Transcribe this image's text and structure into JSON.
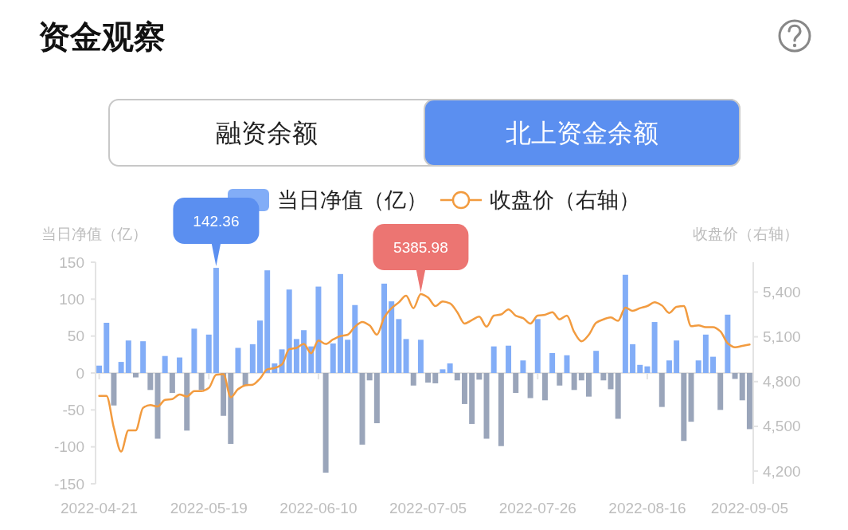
{
  "chart_data": {
    "type": "bar",
    "title": "资金观察",
    "annotations": [
      "融资余额",
      "北上资金余额"
    ],
    "ylabel": "当日净值（亿）",
    "y2label": "收盘价（右轴）",
    "legend": "top",
    "categories": [
      "2022-04-21",
      null,
      null,
      null,
      null,
      null,
      null,
      null,
      null,
      null,
      null,
      null,
      null,
      null,
      null,
      "2022-05-19",
      null,
      null,
      null,
      null,
      null,
      null,
      null,
      null,
      null,
      null,
      null,
      null,
      null,
      null,
      "2022-06-10",
      null,
      null,
      null,
      null,
      null,
      null,
      null,
      null,
      null,
      null,
      null,
      null,
      null,
      null,
      "2022-07-05",
      null,
      null,
      null,
      null,
      null,
      null,
      null,
      null,
      null,
      null,
      null,
      null,
      null,
      null,
      "2022-07-26",
      null,
      null,
      null,
      null,
      null,
      null,
      null,
      null,
      null,
      null,
      null,
      null,
      null,
      null,
      "2022-08-16",
      null,
      null,
      null,
      null,
      null,
      null,
      null,
      null,
      null,
      null,
      null,
      null,
      null,
      "2022-09-05"
    ],
    "series": [
      {
        "name": "当日净值（亿）",
        "color": "#82adf7",
        "values": [
          10,
          68,
          -44,
          15,
          44,
          -6,
          43,
          -23,
          -89,
          23,
          -27,
          21,
          -78,
          60,
          -23,
          52,
          142.36,
          -58,
          -96,
          34,
          -17,
          39,
          71,
          139,
          13,
          32,
          113,
          46,
          58,
          36,
          117,
          -135,
          40,
          134,
          45,
          92,
          -97,
          -10,
          -68,
          121,
          97,
          73,
          46,
          -17,
          45,
          -13,
          -14,
          5,
          13,
          -10,
          -42,
          -69,
          -9,
          -89,
          36,
          -99,
          37,
          -27,
          17,
          -34,
          73,
          -37,
          27,
          -17,
          24,
          -23,
          -10,
          -32,
          30,
          -10,
          -22,
          -62,
          133,
          39,
          11,
          9,
          69,
          -46,
          17,
          44,
          -92,
          -66,
          17,
          52,
          22,
          -50,
          79,
          -8,
          -37,
          -76
        ],
        "colors": [
          "#82adf7",
          "#82adf7",
          "#9aa5ba",
          "#82adf7",
          "#82adf7",
          "#9aa5ba",
          "#82adf7",
          "#9aa5ba",
          "#9aa5ba",
          "#82adf7",
          "#9aa5ba",
          "#82adf7",
          "#9aa5ba",
          "#82adf7",
          "#9aa5ba",
          "#82adf7",
          "#82adf7",
          "#9aa5ba",
          "#9aa5ba",
          "#82adf7",
          "#9aa5ba",
          "#82adf7",
          "#82adf7",
          "#82adf7",
          "#82adf7",
          "#82adf7",
          "#82adf7",
          "#82adf7",
          "#82adf7",
          "#82adf7",
          "#82adf7",
          "#9aa5ba",
          "#82adf7",
          "#82adf7",
          "#82adf7",
          "#82adf7",
          "#9aa5ba",
          "#9aa5ba",
          "#9aa5ba",
          "#82adf7",
          "#82adf7",
          "#82adf7",
          "#82adf7",
          "#9aa5ba",
          "#82adf7",
          "#9aa5ba",
          "#9aa5ba",
          "#82adf7",
          "#82adf7",
          "#9aa5ba",
          "#9aa5ba",
          "#9aa5ba",
          "#9aa5ba",
          "#9aa5ba",
          "#82adf7",
          "#9aa5ba",
          "#82adf7",
          "#9aa5ba",
          "#82adf7",
          "#9aa5ba",
          "#82adf7",
          "#9aa5ba",
          "#82adf7",
          "#9aa5ba",
          "#82adf7",
          "#9aa5ba",
          "#9aa5ba",
          "#9aa5ba",
          "#82adf7",
          "#9aa5ba",
          "#9aa5ba",
          "#9aa5ba",
          "#82adf7",
          "#82adf7",
          "#82adf7",
          "#82adf7",
          "#82adf7",
          "#9aa5ba",
          "#82adf7",
          "#82adf7",
          "#9aa5ba",
          "#9aa5ba",
          "#82adf7",
          "#82adf7",
          "#82adf7",
          "#9aa5ba",
          "#82adf7",
          "#9aa5ba",
          "#9aa5ba",
          "#9aa5ba"
        ],
        "value_labels": [
          null,
          null,
          null,
          null,
          null,
          null,
          null,
          null,
          null,
          null,
          null,
          null,
          null,
          null,
          null,
          null,
          "142.36",
          null,
          null,
          null,
          null,
          null,
          null,
          null,
          null,
          null,
          null,
          null,
          null,
          null,
          null,
          null,
          null,
          null,
          null,
          null,
          null,
          null,
          null,
          null,
          null,
          null,
          null,
          null,
          null,
          null,
          null,
          null,
          null,
          null,
          null,
          null,
          null,
          null,
          null,
          null,
          null,
          null,
          null,
          null,
          null,
          null,
          null,
          null,
          null,
          null,
          null,
          null,
          null,
          null,
          null,
          null,
          null,
          null,
          null,
          null,
          null,
          null,
          null,
          null,
          null,
          null,
          null,
          null,
          null,
          null,
          null,
          null,
          null,
          null
        ]
      },
      {
        "name": "收盘价（右轴）",
        "type": "line",
        "axis": "y2",
        "color": "#f29b3f",
        "values": [
          4704,
          4704,
          4491,
          4331,
          4473,
          4473,
          4624,
          4642,
          4633,
          4677,
          4683,
          4713,
          4700,
          4736,
          4736,
          4757,
          4846,
          4850,
          4695,
          4749,
          4775,
          4779,
          4820,
          4882,
          4891,
          4915,
          5017,
          5026,
          5052,
          4990,
          5075,
          5052,
          5082,
          5105,
          5114,
          5168,
          5200,
          5177,
          5114,
          5230,
          5292,
          5331,
          5375,
          5292,
          5385.98,
          5363,
          5306,
          5337,
          5324,
          5265,
          5189,
          5212,
          5235,
          5168,
          5242,
          5250,
          5284,
          5242,
          5225,
          5189,
          5242,
          5248,
          5265,
          5217,
          5242,
          5132,
          5070,
          5114,
          5194,
          5217,
          5230,
          5207,
          5296,
          5274,
          5292,
          5306,
          5331,
          5310,
          5260,
          5301,
          5306,
          5171,
          5177,
          5164,
          5164,
          5137,
          5057,
          5030,
          5039,
          5048
        ],
        "value_labels": [
          null,
          null,
          null,
          null,
          null,
          null,
          null,
          null,
          null,
          null,
          null,
          null,
          null,
          null,
          null,
          null,
          null,
          null,
          null,
          null,
          null,
          null,
          null,
          null,
          null,
          null,
          null,
          null,
          null,
          null,
          null,
          null,
          null,
          null,
          null,
          null,
          null,
          null,
          null,
          null,
          null,
          null,
          null,
          null,
          "5385.98",
          null,
          null,
          null,
          null,
          null,
          null,
          null,
          null,
          null,
          null,
          null,
          null,
          null,
          null,
          null,
          null,
          null,
          null,
          null,
          null,
          null,
          null,
          null,
          null,
          null,
          null,
          null,
          null,
          null,
          null,
          null,
          null,
          null,
          null,
          null,
          null,
          null,
          null,
          null,
          null,
          null,
          null,
          null,
          null,
          null
        ]
      }
    ],
    "ylim": [
      -150,
      150
    ],
    "yticks": [
      -150,
      -100,
      -50,
      0,
      50,
      100,
      150
    ],
    "y2lim": [
      4115,
      5600
    ],
    "y2ticks": [
      {
        "value": 4200,
        "label": "4,200"
      },
      {
        "value": 4500,
        "label": "4,500"
      },
      {
        "value": 4800,
        "label": "4,800"
      },
      {
        "value": 5100,
        "label": "5,100"
      },
      {
        "value": 5400,
        "label": "5,400"
      }
    ]
  }
}
